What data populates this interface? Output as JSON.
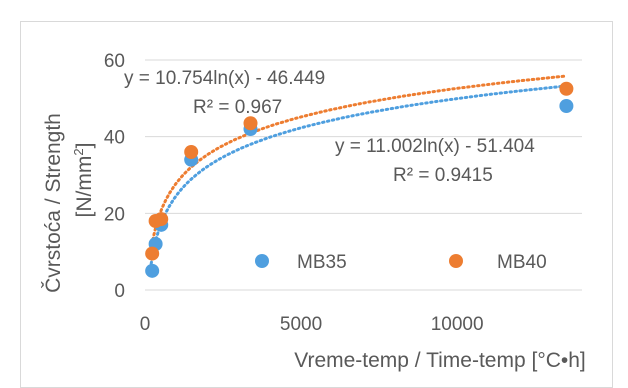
{
  "chart_data": {
    "type": "scatter",
    "xlabel": "Vreme-temp / Time-temp [°C•h]",
    "ylabel_main": "Čvrstoća / Strength",
    "ylabel_unit_prefix": "[N/mm",
    "ylabel_unit_sup": "2",
    "ylabel_unit_suffix": "]",
    "xlim": [
      0,
      14000
    ],
    "ylim": [
      0,
      60
    ],
    "x_ticks": [
      0,
      5000,
      10000
    ],
    "y_ticks": [
      0,
      20,
      40,
      60
    ],
    "x_tick_labels": [
      "0",
      "5000",
      "10000"
    ],
    "y_tick_labels": [
      "0",
      "20",
      "40",
      "60"
    ],
    "grid": "horizontal",
    "legend_position": "inside-bottom",
    "series": [
      {
        "name": "MB35",
        "color": "#4f9fdf",
        "points": [
          {
            "x": 230,
            "y": 5
          },
          {
            "x": 340,
            "y": 12
          },
          {
            "x": 520,
            "y": 17
          },
          {
            "x": 1480,
            "y": 34
          },
          {
            "x": 3380,
            "y": 42
          },
          {
            "x": 13500,
            "y": 48
          }
        ],
        "trendline": {
          "type": "log",
          "a": 11.002,
          "b": -51.404
        },
        "equation": "y = 11.002ln(x) - 51.404",
        "r2": "R² = 0.9415"
      },
      {
        "name": "MB40",
        "color": "#ed7d31",
        "points": [
          {
            "x": 230,
            "y": 9.5
          },
          {
            "x": 340,
            "y": 18
          },
          {
            "x": 520,
            "y": 18.5
          },
          {
            "x": 1480,
            "y": 36
          },
          {
            "x": 3380,
            "y": 43.5
          },
          {
            "x": 13500,
            "y": 52.5
          }
        ],
        "trendline": {
          "type": "log",
          "a": 10.754,
          "b": -46.449
        },
        "equation": "y = 10.754ln(x) - 46.449",
        "r2": "R² = 0.967"
      }
    ]
  }
}
